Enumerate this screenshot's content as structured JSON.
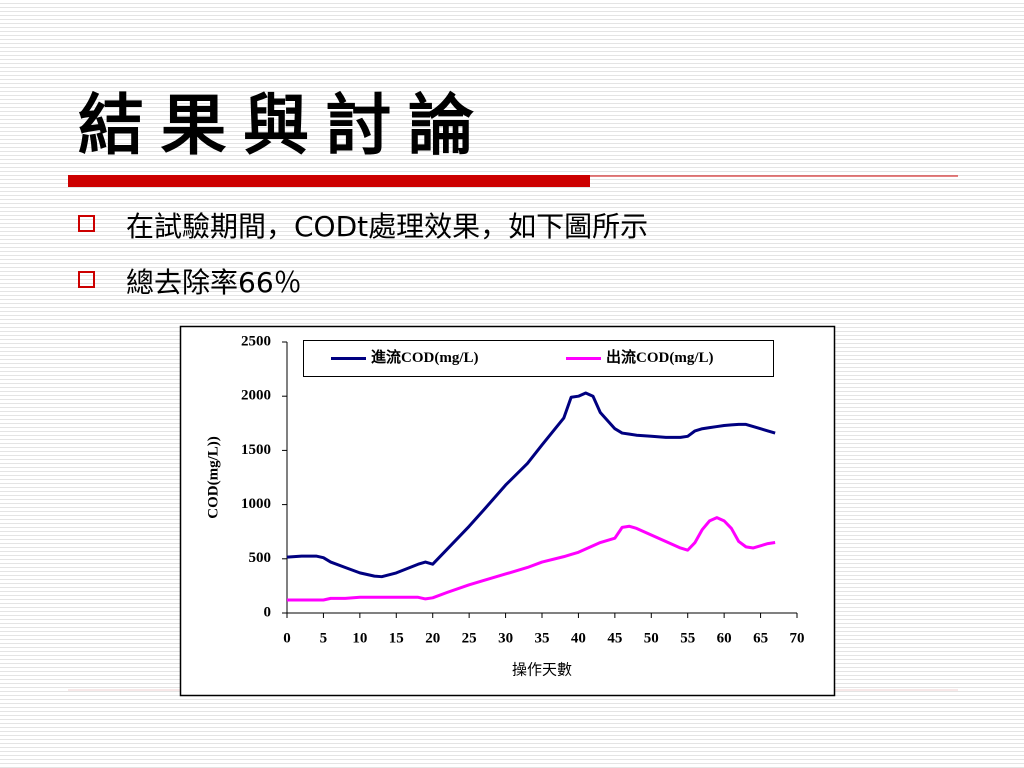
{
  "slide": {
    "title": "結 果 與 討 論",
    "bullets": [
      "在試驗期間，CODt處理效果，如下圖所示",
      "總去除率66％"
    ]
  },
  "chart_data": {
    "type": "line",
    "xlabel": "操作天數",
    "ylabel": "COD(mg/L))",
    "x": [
      0,
      2,
      4,
      5,
      6,
      8,
      10,
      12,
      13,
      15,
      18,
      19,
      20,
      22,
      25,
      27,
      30,
      33,
      35,
      38,
      39,
      40,
      41,
      42,
      43,
      45,
      46,
      47,
      48,
      50,
      52,
      54,
      55,
      56,
      57,
      58,
      59,
      60,
      61,
      62,
      63,
      64,
      66,
      67
    ],
    "series": [
      {
        "name": "進流COD(mg/L)",
        "color": "#000080",
        "values": [
          515,
          525,
          525,
          510,
          470,
          420,
          370,
          340,
          335,
          370,
          450,
          470,
          450,
          590,
          800,
          950,
          1180,
          1380,
          1550,
          1800,
          1990,
          2000,
          2030,
          2000,
          1850,
          1700,
          1660,
          1650,
          1640,
          1630,
          1620,
          1620,
          1630,
          1680,
          1700,
          1710,
          1720,
          1730,
          1735,
          1740,
          1740,
          1720,
          1680,
          1660
        ]
      },
      {
        "name": "出流COD(mg/L)",
        "color": "#ff00ff",
        "values": [
          120,
          120,
          120,
          120,
          135,
          135,
          145,
          145,
          145,
          145,
          145,
          130,
          140,
          190,
          260,
          300,
          360,
          420,
          470,
          520,
          540,
          560,
          590,
          620,
          650,
          690,
          790,
          800,
          780,
          720,
          660,
          600,
          580,
          650,
          770,
          850,
          880,
          850,
          780,
          660,
          610,
          600,
          640,
          650
        ]
      }
    ],
    "xlim": [
      0,
      70
    ],
    "xticks": [
      0,
      5,
      10,
      15,
      20,
      25,
      30,
      35,
      40,
      45,
      50,
      55,
      60,
      65,
      70
    ],
    "ylim": [
      0,
      2500
    ],
    "yticks": [
      0,
      500,
      1000,
      1500,
      2000,
      2500
    ],
    "grid": false,
    "legend": "top"
  }
}
